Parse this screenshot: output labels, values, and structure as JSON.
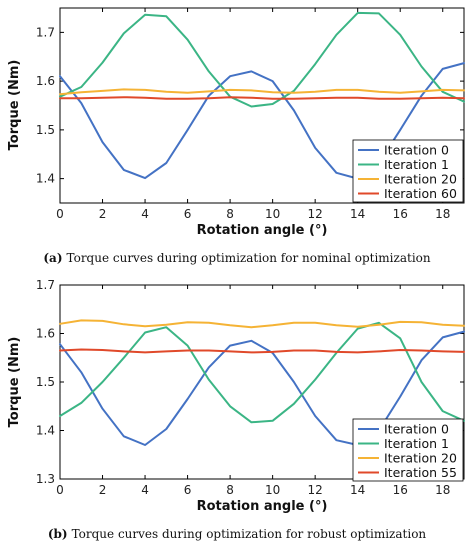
{
  "colors": {
    "iter0": "#4472c4",
    "iter1": "#3bb585",
    "iter20": "#f5b335",
    "iterLast": "#e0492a",
    "frame": "#000000"
  },
  "chart_data": [
    {
      "type": "line",
      "caption_tag": "(a)",
      "caption_text": "Torque curves during optimization for nominal optimization",
      "xlabel": "Rotation angle (°)",
      "ylabel": "Torque (Nm)",
      "xlim": [
        0,
        19
      ],
      "ylim": [
        1.35,
        1.75
      ],
      "xticks": [
        0,
        2,
        4,
        6,
        8,
        10,
        12,
        14,
        16,
        18
      ],
      "yticks": [
        1.4,
        1.5,
        1.6,
        1.7
      ],
      "grid": false,
      "legend_position": "bottom-right",
      "x": [
        0,
        1,
        2,
        3,
        4,
        5,
        6,
        7,
        8,
        9,
        10,
        11,
        12,
        13,
        14,
        15,
        16,
        17,
        18,
        19
      ],
      "series": [
        {
          "name": "Iteration 0",
          "color": "#4472c4",
          "values": [
            1.61,
            1.555,
            1.475,
            1.418,
            1.401,
            1.432,
            1.5,
            1.57,
            1.61,
            1.62,
            1.6,
            1.54,
            1.463,
            1.412,
            1.4,
            1.432,
            1.5,
            1.57,
            1.625,
            1.637
          ]
        },
        {
          "name": "Iteration 1",
          "color": "#3bb585",
          "values": [
            1.568,
            1.588,
            1.638,
            1.698,
            1.736,
            1.733,
            1.685,
            1.62,
            1.568,
            1.548,
            1.553,
            1.58,
            1.635,
            1.695,
            1.74,
            1.739,
            1.695,
            1.63,
            1.578,
            1.558
          ]
        },
        {
          "name": "Iteration 20",
          "color": "#f5b335",
          "values": [
            1.573,
            1.577,
            1.58,
            1.583,
            1.582,
            1.578,
            1.576,
            1.579,
            1.582,
            1.581,
            1.577,
            1.576,
            1.578,
            1.582,
            1.582,
            1.578,
            1.576,
            1.579,
            1.582,
            1.581
          ]
        },
        {
          "name": "Iteration 60",
          "color": "#e0492a",
          "values": [
            1.565,
            1.565,
            1.566,
            1.567,
            1.566,
            1.564,
            1.564,
            1.565,
            1.567,
            1.566,
            1.564,
            1.564,
            1.565,
            1.566,
            1.566,
            1.564,
            1.564,
            1.565,
            1.566,
            1.565
          ]
        }
      ]
    },
    {
      "type": "line",
      "caption_tag": "(b)",
      "caption_text": "Torque curves during optimization for robust optimization",
      "xlabel": "Rotation angle (°)",
      "ylabel": "Torque (Nm)",
      "xlim": [
        0,
        19
      ],
      "ylim": [
        1.3,
        1.7
      ],
      "xticks": [
        0,
        2,
        4,
        6,
        8,
        10,
        12,
        14,
        16,
        18
      ],
      "yticks": [
        1.3,
        1.4,
        1.5,
        1.6,
        1.7
      ],
      "grid": false,
      "legend_position": "bottom-right",
      "x": [
        0,
        1,
        2,
        3,
        4,
        5,
        6,
        7,
        8,
        9,
        10,
        11,
        12,
        13,
        14,
        15,
        16,
        17,
        18,
        19
      ],
      "series": [
        {
          "name": "Iteration 0",
          "color": "#4472c4",
          "values": [
            1.578,
            1.52,
            1.445,
            1.388,
            1.37,
            1.403,
            1.465,
            1.53,
            1.575,
            1.585,
            1.56,
            1.5,
            1.43,
            1.38,
            1.37,
            1.4,
            1.47,
            1.545,
            1.592,
            1.604
          ]
        },
        {
          "name": "Iteration 1",
          "color": "#3bb585",
          "values": [
            1.43,
            1.457,
            1.5,
            1.55,
            1.602,
            1.613,
            1.575,
            1.505,
            1.45,
            1.417,
            1.42,
            1.455,
            1.505,
            1.56,
            1.61,
            1.622,
            1.59,
            1.5,
            1.44,
            1.42
          ]
        },
        {
          "name": "Iteration 20",
          "color": "#f5b335",
          "values": [
            1.62,
            1.627,
            1.626,
            1.619,
            1.615,
            1.618,
            1.623,
            1.622,
            1.617,
            1.613,
            1.617,
            1.622,
            1.622,
            1.617,
            1.614,
            1.618,
            1.624,
            1.623,
            1.618,
            1.616
          ]
        },
        {
          "name": "Iteration 55",
          "color": "#e0492a",
          "values": [
            1.565,
            1.567,
            1.566,
            1.563,
            1.561,
            1.563,
            1.565,
            1.565,
            1.563,
            1.561,
            1.562,
            1.565,
            1.565,
            1.562,
            1.561,
            1.563,
            1.566,
            1.565,
            1.563,
            1.562
          ]
        }
      ]
    }
  ]
}
